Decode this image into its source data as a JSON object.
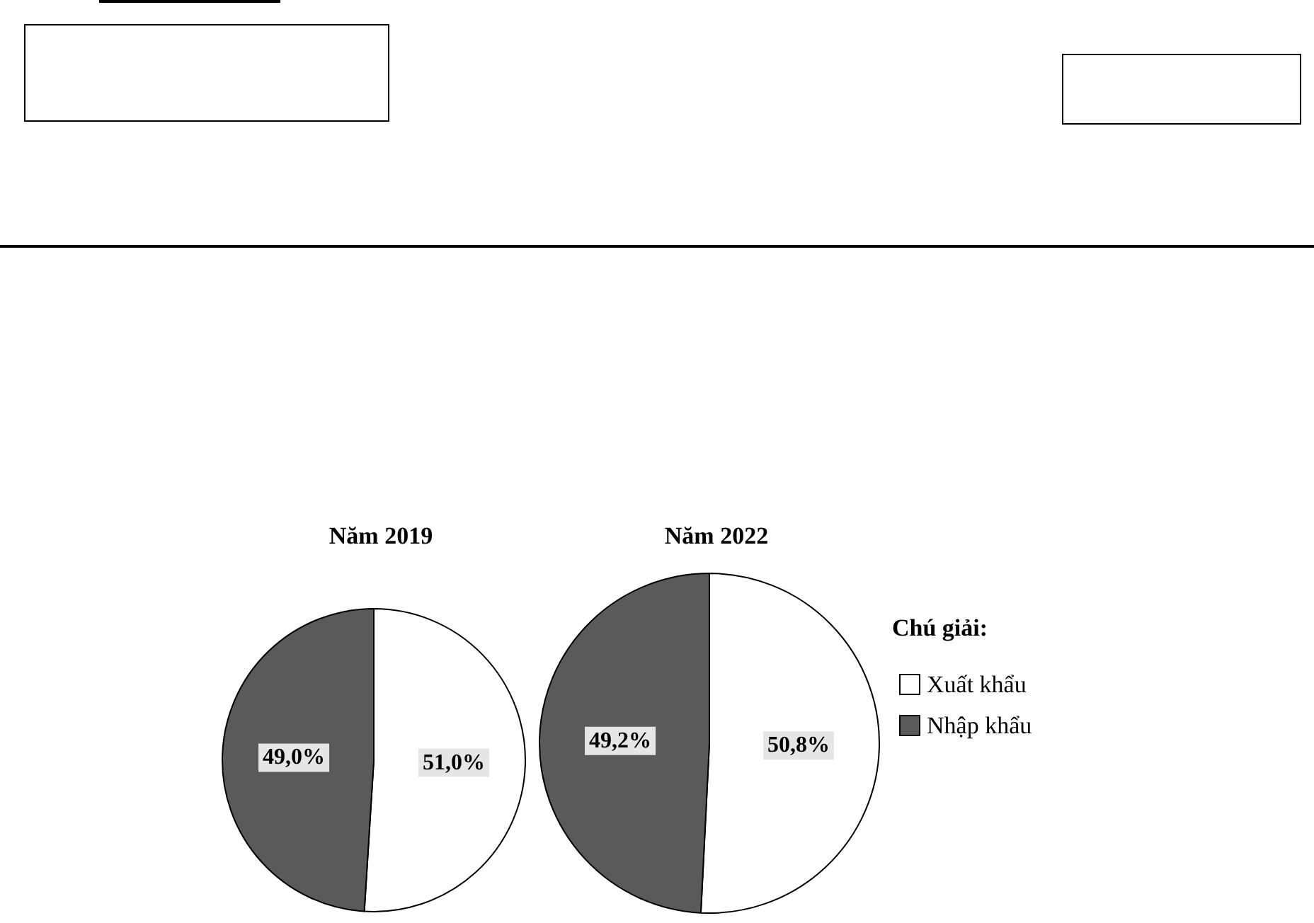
{
  "chart_data": {
    "type": "pie",
    "categories": [
      "Xuất khẩu",
      "Nhập khẩu"
    ],
    "colors": [
      "#ffffff",
      "#5a5a5a"
    ],
    "legend": "right",
    "legend_title": "Chú giải:",
    "series": [
      {
        "name": "Năm 2019",
        "values": [
          51.0,
          49.0
        ],
        "value_labels": [
          "51,0%",
          "49,0%"
        ]
      },
      {
        "name": "Năm 2022",
        "values": [
          50.8,
          49.2
        ],
        "value_labels": [
          "50,8%",
          "49,2%"
        ]
      }
    ]
  }
}
